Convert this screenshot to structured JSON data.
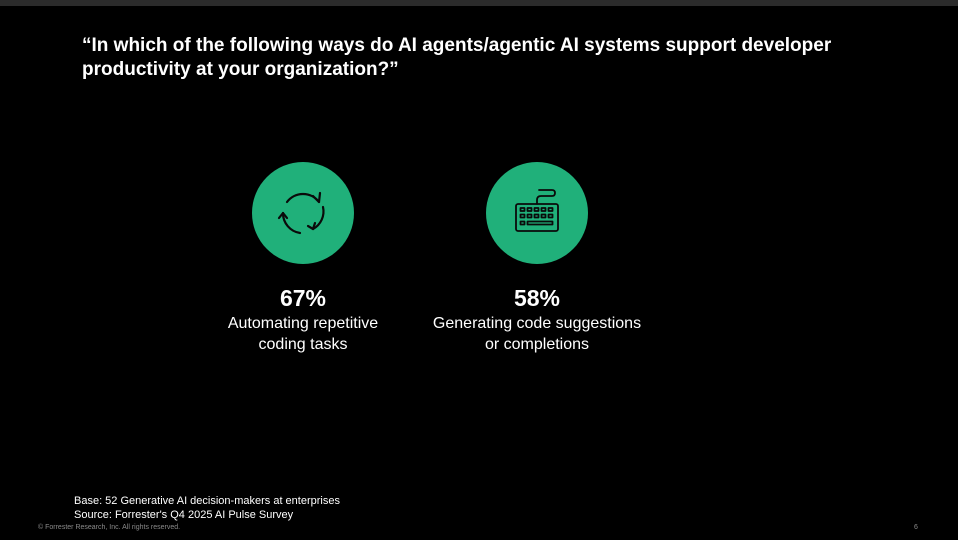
{
  "slide": {
    "title": "“In which of the following ways do AI agents/agentic AI systems support developer productivity at your organization?”",
    "accent_color": "#20b07a",
    "stats": [
      {
        "icon": "repeat-cycle-icon",
        "value": "67%",
        "description": "Automating repetitive\ncoding tasks"
      },
      {
        "icon": "keyboard-icon",
        "value": "58%",
        "description": "Generating code suggestions\nor completions"
      }
    ],
    "base": "Base: 52 Generative AI decision-makers at enterprises",
    "source": "Source: Forrester's Q4 2025 AI Pulse Survey"
  },
  "footer": {
    "copyright": "© Forrester Research, Inc. All rights reserved.",
    "page_number": "6"
  }
}
